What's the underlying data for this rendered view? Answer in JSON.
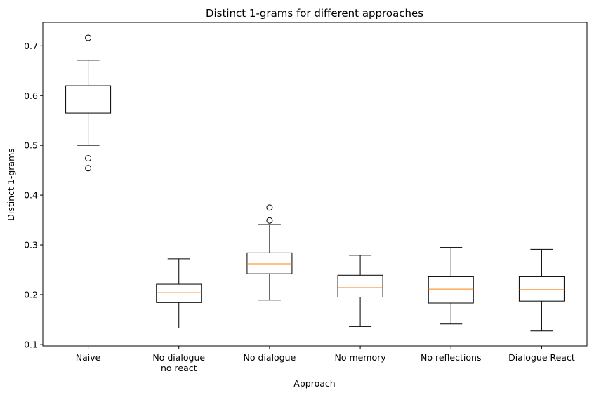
{
  "chart_data": {
    "type": "boxplot",
    "title": "Distinct 1-grams for different approaches",
    "xlabel": "Approach",
    "ylabel": "Distinct 1-grams",
    "ylim": [
      0.097,
      0.747
    ],
    "yticks": [
      0.1,
      0.2,
      0.3,
      0.4,
      0.5,
      0.6,
      0.7
    ],
    "grid": false,
    "colors": {
      "box": "#000000",
      "median": "#ff7f0e"
    },
    "categories": [
      {
        "label": "Naive",
        "label_lines": [
          "Naive"
        ],
        "whisker_low": 0.5,
        "q1": 0.565,
        "median": 0.587,
        "q3": 0.62,
        "whisker_high": 0.671,
        "outliers": [
          0.716,
          0.474,
          0.454
        ]
      },
      {
        "label": "No dialogue no react",
        "label_lines": [
          "No dialogue",
          "no react"
        ],
        "whisker_low": 0.133,
        "q1": 0.184,
        "median": 0.204,
        "q3": 0.221,
        "whisker_high": 0.272,
        "outliers": []
      },
      {
        "label": "No dialogue",
        "label_lines": [
          "No dialogue"
        ],
        "whisker_low": 0.189,
        "q1": 0.242,
        "median": 0.262,
        "q3": 0.284,
        "whisker_high": 0.341,
        "outliers": [
          0.375,
          0.349
        ]
      },
      {
        "label": "No memory",
        "label_lines": [
          "No memory"
        ],
        "whisker_low": 0.136,
        "q1": 0.195,
        "median": 0.214,
        "q3": 0.239,
        "whisker_high": 0.279,
        "outliers": []
      },
      {
        "label": "No reflections",
        "label_lines": [
          "No reflections"
        ],
        "whisker_low": 0.141,
        "q1": 0.183,
        "median": 0.211,
        "q3": 0.236,
        "whisker_high": 0.295,
        "outliers": []
      },
      {
        "label": "Dialogue React",
        "label_lines": [
          "Dialogue React"
        ],
        "whisker_low": 0.127,
        "q1": 0.187,
        "median": 0.21,
        "q3": 0.236,
        "whisker_high": 0.291,
        "outliers": []
      }
    ]
  }
}
